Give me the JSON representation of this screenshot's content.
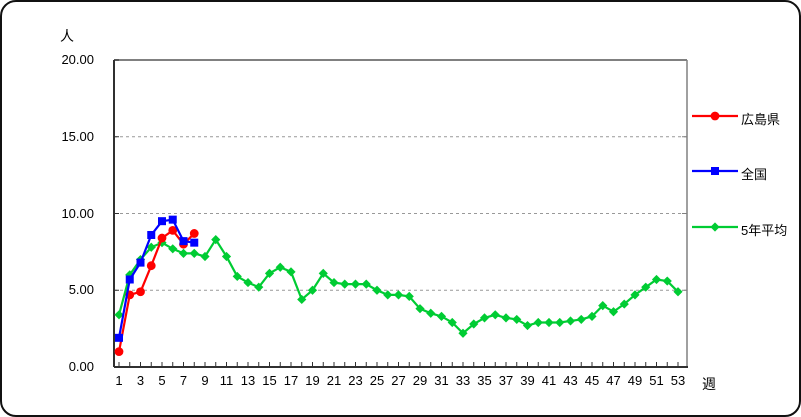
{
  "chart_data": {
    "type": "line",
    "title": "",
    "x_axis": {
      "label": "週",
      "min": 1,
      "max": 53,
      "minor_tick_interval": 1,
      "tick_label_weeks": [
        1,
        3,
        5,
        7,
        9,
        11,
        13,
        15,
        17,
        19,
        21,
        23,
        25,
        27,
        29,
        31,
        33,
        35,
        37,
        39,
        41,
        43,
        45,
        47,
        49,
        51,
        53
      ],
      "tick_labels": [
        "1",
        "3",
        "5",
        "7",
        "9",
        "11",
        "13",
        "15",
        "17",
        "19",
        "21",
        "23",
        "25",
        "27",
        "29",
        "31",
        "33",
        "35",
        "37",
        "39",
        "41",
        "43",
        "45",
        "47",
        "49",
        "51",
        "53"
      ]
    },
    "y_axis": {
      "label": "人",
      "min": 0,
      "max": 20,
      "tick_values": [
        0,
        5,
        10,
        15,
        20
      ],
      "tick_labels": [
        "0.00",
        "5.00",
        "10.00",
        "15.00",
        "20.00"
      ]
    },
    "grid": "horizontal dashed",
    "legend_position": "right",
    "series": [
      {
        "name": "広島県",
        "color": "#FF0000",
        "marker": "circle",
        "weeks": [
          1,
          2,
          3,
          4,
          5,
          6,
          7,
          8
        ],
        "values": [
          1.0,
          4.7,
          4.9,
          6.6,
          8.4,
          8.9,
          8.0,
          8.7
        ]
      },
      {
        "name": "全国",
        "color": "#0000FF",
        "marker": "square",
        "weeks": [
          1,
          2,
          3,
          4,
          5,
          6,
          7,
          8
        ],
        "values": [
          1.9,
          5.7,
          6.8,
          8.6,
          9.5,
          9.6,
          8.2,
          8.1
        ]
      },
      {
        "name": "5年平均",
        "color": "#00CC33",
        "marker": "diamond",
        "weeks": [
          1,
          2,
          3,
          4,
          5,
          6,
          7,
          8,
          9,
          10,
          11,
          12,
          13,
          14,
          15,
          16,
          17,
          18,
          19,
          20,
          21,
          22,
          23,
          24,
          25,
          26,
          27,
          28,
          29,
          30,
          31,
          32,
          33,
          34,
          35,
          36,
          37,
          38,
          39,
          40,
          41,
          42,
          43,
          44,
          45,
          46,
          47,
          48,
          49,
          50,
          51,
          52,
          53
        ],
        "values": [
          3.4,
          6.0,
          7.0,
          7.8,
          8.1,
          7.7,
          7.4,
          7.4,
          7.2,
          8.3,
          7.2,
          5.9,
          5.5,
          5.2,
          6.1,
          6.5,
          6.2,
          4.4,
          5.0,
          6.1,
          5.5,
          5.4,
          5.4,
          5.4,
          5.0,
          4.7,
          4.7,
          4.6,
          3.8,
          3.5,
          3.3,
          2.9,
          2.2,
          2.8,
          3.2,
          3.4,
          3.2,
          3.1,
          2.7,
          2.9,
          2.9,
          2.9,
          3.0,
          3.1,
          3.3,
          4.0,
          3.6,
          4.1,
          4.7,
          5.2,
          5.7,
          5.6,
          4.9
        ]
      }
    ]
  },
  "style_colors": {
    "gridline": "#999999",
    "axis_dark": "#303030",
    "axis_light": "#808080"
  }
}
